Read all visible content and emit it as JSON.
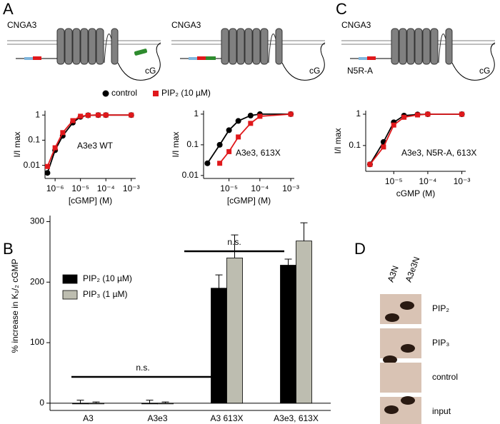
{
  "panel_labels": [
    "A",
    "B",
    "C",
    "D"
  ],
  "diagrams": [
    {
      "protein": "CNGA3",
      "domain": "cG"
    },
    {
      "protein": "CNGA3",
      "domain": "cG"
    },
    {
      "protein": "CNGA3",
      "domain": "cG",
      "mutation": "N5R-A"
    }
  ],
  "blot": {
    "columns": [
      "A3N",
      "A3e3N"
    ],
    "rows": [
      "PIP₂",
      "PIP₃",
      "control",
      "input"
    ]
  },
  "chart_data": [
    {
      "type": "line",
      "log_x": true,
      "log_y": true,
      "ylabel": "I/I max",
      "xlabel": "[cGMP] (M)",
      "annotation": "A3e3 WT",
      "xlim": [
        4e-07,
        0.0015
      ],
      "ylim": [
        0.003,
        1.5
      ],
      "xticks": [
        {
          "value": 1e-06,
          "label": "10⁻⁶"
        },
        {
          "value": 1e-05,
          "label": "10⁻⁵"
        },
        {
          "value": 0.0001,
          "label": "10⁻⁴"
        },
        {
          "value": 0.001,
          "label": "10⁻³"
        }
      ],
      "yticks": [
        0.01,
        0.1,
        1
      ],
      "series": [
        {
          "name": "control",
          "color": "#000000",
          "marker": "circle",
          "x": [
            5e-07,
            1e-06,
            2e-06,
            5e-06,
            1e-05,
            2e-05,
            5e-05,
            0.0001,
            0.001
          ],
          "values": [
            0.005,
            0.04,
            0.15,
            0.5,
            0.85,
            0.98,
            1,
            1,
            1
          ]
        },
        {
          "name": "PIP₂ (10 µM)",
          "color": "#e0181b",
          "marker": "square",
          "x": [
            5e-07,
            1e-06,
            2e-06,
            5e-06,
            1e-05,
            2e-05,
            5e-05,
            0.0001,
            0.001
          ],
          "values": [
            0.009,
            0.05,
            0.2,
            0.6,
            0.9,
            0.98,
            1,
            1,
            1
          ]
        }
      ]
    },
    {
      "type": "line",
      "log_x": true,
      "log_y": true,
      "ylabel": "I/I max",
      "xlabel": "[cGMP] (M)",
      "annotation": "A3e3, 613X",
      "xlim": [
        1.5e-06,
        0.0013
      ],
      "ylim": [
        0.008,
        1.3
      ],
      "xticks": [
        {
          "value": 1e-05,
          "label": "10⁻⁵"
        },
        {
          "value": 0.0001,
          "label": "10⁻⁴"
        },
        {
          "value": 0.001,
          "label": "10⁻³"
        }
      ],
      "yticks": [
        0.01,
        0.1,
        1
      ],
      "series": [
        {
          "color": "#000000",
          "marker": "circle",
          "x": [
            2e-06,
            5e-06,
            1e-05,
            2e-05,
            5e-05,
            0.0001,
            0.001
          ],
          "values": [
            0.025,
            0.1,
            0.3,
            0.6,
            0.9,
            1,
            1
          ]
        },
        {
          "color": "#e0181b",
          "marker": "square",
          "x": [
            5e-06,
            1e-05,
            2e-05,
            5e-05,
            0.0001,
            0.001
          ],
          "values": [
            0.025,
            0.06,
            0.18,
            0.5,
            0.85,
            1
          ]
        }
      ]
    },
    {
      "type": "line",
      "log_x": true,
      "log_y": true,
      "ylabel": "I/I max",
      "xlabel": "cGMP (M)",
      "annotation": "A3e3, N5R-A, 613X",
      "xlim": [
        1.5e-06,
        0.0013
      ],
      "ylim": [
        0.015,
        1.3
      ],
      "xticks": [
        {
          "value": 1e-05,
          "label": "10⁻⁵"
        },
        {
          "value": 0.0001,
          "label": "10⁻⁴"
        },
        {
          "value": 0.001,
          "label": "10⁻³"
        }
      ],
      "yticks": [
        0.1,
        1
      ],
      "series": [
        {
          "color": "#000000",
          "marker": "circle",
          "x": [
            2e-06,
            5e-06,
            1e-05,
            2e-05,
            5e-05,
            0.0001,
            0.001
          ],
          "values": [
            0.025,
            0.13,
            0.55,
            0.9,
            0.98,
            1,
            1
          ]
        },
        {
          "color": "#e0181b",
          "marker": "square",
          "x": [
            2e-06,
            5e-06,
            1e-05,
            2e-05,
            5e-05,
            0.0001,
            0.001
          ],
          "values": [
            0.025,
            0.09,
            0.45,
            0.8,
            0.95,
            1,
            1
          ]
        }
      ]
    },
    {
      "type": "bar",
      "ylabel": "% increase in K₁/₂ cGMP",
      "categories": [
        "A3",
        "A3e3",
        "A3 613X",
        "A3e3, 613X"
      ],
      "ylim": [
        -12,
        310
      ],
      "yticks": [
        0,
        100,
        200,
        300
      ],
      "annotations": [
        "n.s.",
        "n.s."
      ],
      "series": [
        {
          "name": "PIP₂ (10 µM)",
          "color": "#000000",
          "values": [
            0,
            0,
            190,
            228
          ],
          "errors": [
            5,
            5,
            22,
            10
          ]
        },
        {
          "name": "PIP₃ (1 µM)",
          "color": "#bdbdb0",
          "values": [
            -1,
            -1,
            240,
            268
          ],
          "errors": [
            3,
            3,
            38,
            30
          ]
        }
      ]
    }
  ]
}
